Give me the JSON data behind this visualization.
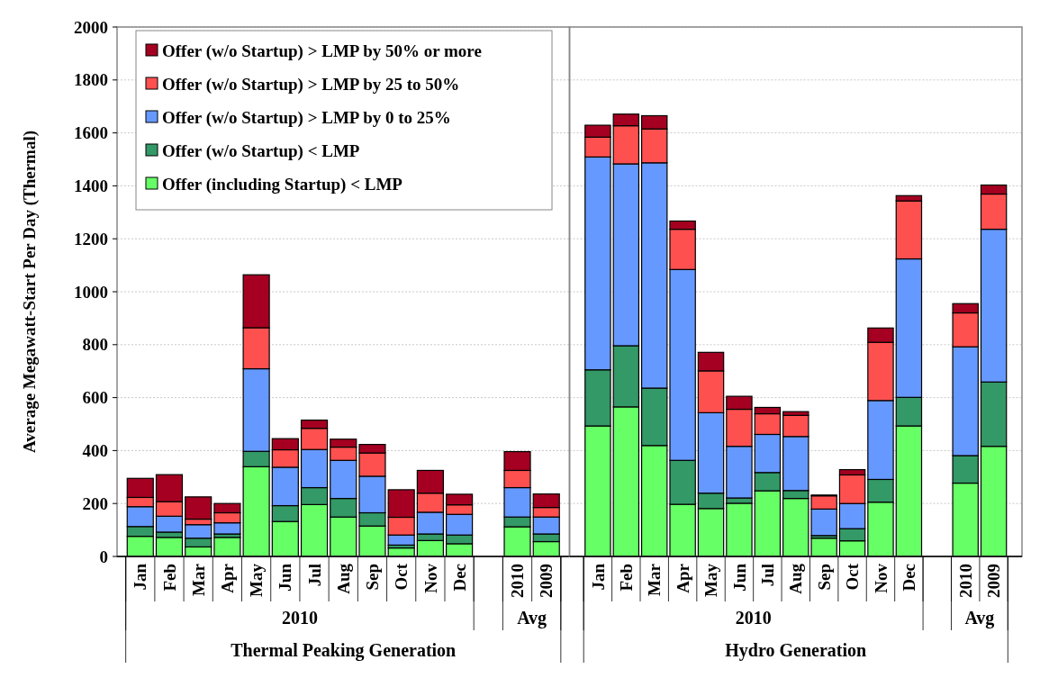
{
  "chart_data": [
    {
      "type": "bar",
      "stacked": true,
      "ylabel": "Average Megawatt-Start Per Day (Thermal)",
      "categories": [
        "Jan",
        "Feb",
        "Mar",
        "Apr",
        "May",
        "Jun",
        "Jul",
        "Aug",
        "Sep",
        "Oct",
        "Nov",
        "Dec",
        null,
        "2010",
        "2009"
      ],
      "series": [
        {
          "name": "Offer (including Startup) < LMP",
          "color": "#66ff66",
          "values": [
            76,
            72,
            36,
            72,
            339,
            132,
            196,
            149,
            115,
            32,
            60,
            48,
            null,
            112,
            56
          ]
        },
        {
          "name": "Offer (w/o Startup) < LMP",
          "color": "#339966",
          "values": [
            37,
            20,
            33,
            13,
            58,
            60,
            64,
            70,
            50,
            11,
            25,
            33,
            null,
            37,
            29
          ]
        },
        {
          "name": "Offer (w/o Startup) > LMP by 0 to 25%",
          "color": "#6699ff",
          "values": [
            75,
            60,
            51,
            42,
            312,
            145,
            144,
            144,
            138,
            38,
            82,
            78,
            null,
            111,
            64
          ]
        },
        {
          "name": "Offer (w/o Startup) > LMP by 25 to 50%",
          "color": "#ff5050",
          "values": [
            35,
            55,
            21,
            38,
            155,
            66,
            80,
            50,
            88,
            67,
            72,
            36,
            null,
            65,
            36
          ]
        },
        {
          "name": "Offer (w/o Startup) > LMP by 50% or more",
          "color": "#a50021",
          "values": [
            72,
            102,
            84,
            35,
            200,
            42,
            31,
            30,
            32,
            104,
            86,
            40,
            null,
            71,
            51
          ]
        }
      ],
      "ylim": [
        0,
        2000
      ],
      "yticks": [
        0,
        200,
        400,
        600,
        800,
        1000,
        1200,
        1400,
        1600,
        1800,
        2000
      ],
      "grid": "y",
      "legend": "top left",
      "annotations": [
        "2010",
        "Avg",
        "Thermal Peaking Generation"
      ]
    },
    {
      "type": "bar",
      "stacked": true,
      "categories": [
        "Jan",
        "Feb",
        "Mar",
        "Apr",
        "May",
        "Jun",
        "Jul",
        "Aug",
        "Sep",
        "Oct",
        "Nov",
        "Dec",
        null,
        "2010",
        "2009"
      ],
      "series": [
        {
          "color": "#66ff66",
          "values": [
            493,
            565,
            419,
            197,
            181,
            201,
            248,
            219,
            69,
            59,
            205,
            493,
            null,
            277,
            416
          ]
        },
        {
          "color": "#339966",
          "values": [
            212,
            231,
            217,
            166,
            58,
            20,
            69,
            30,
            10,
            46,
            86,
            108,
            null,
            104,
            243
          ]
        },
        {
          "color": "#6699ff",
          "values": [
            804,
            687,
            851,
            721,
            304,
            195,
            144,
            204,
            100,
            95,
            298,
            523,
            null,
            411,
            577
          ]
        },
        {
          "color": "#ff5050",
          "values": [
            75,
            144,
            128,
            152,
            158,
            140,
            78,
            80,
            50,
            108,
            220,
            219,
            null,
            128,
            133
          ]
        },
        {
          "color": "#a50021",
          "values": [
            45,
            44,
            50,
            31,
            70,
            49,
            24,
            14,
            3,
            20,
            54,
            20,
            null,
            35,
            34
          ]
        }
      ],
      "ylim": [
        0,
        2000
      ],
      "yticks": [
        0,
        200,
        400,
        600,
        800,
        1000,
        1200,
        1400,
        1600,
        1800,
        2000
      ],
      "grid": "y",
      "tick_labels": "x",
      "annotations": [
        "2010",
        "Avg",
        "Hydro Generation"
      ]
    }
  ]
}
